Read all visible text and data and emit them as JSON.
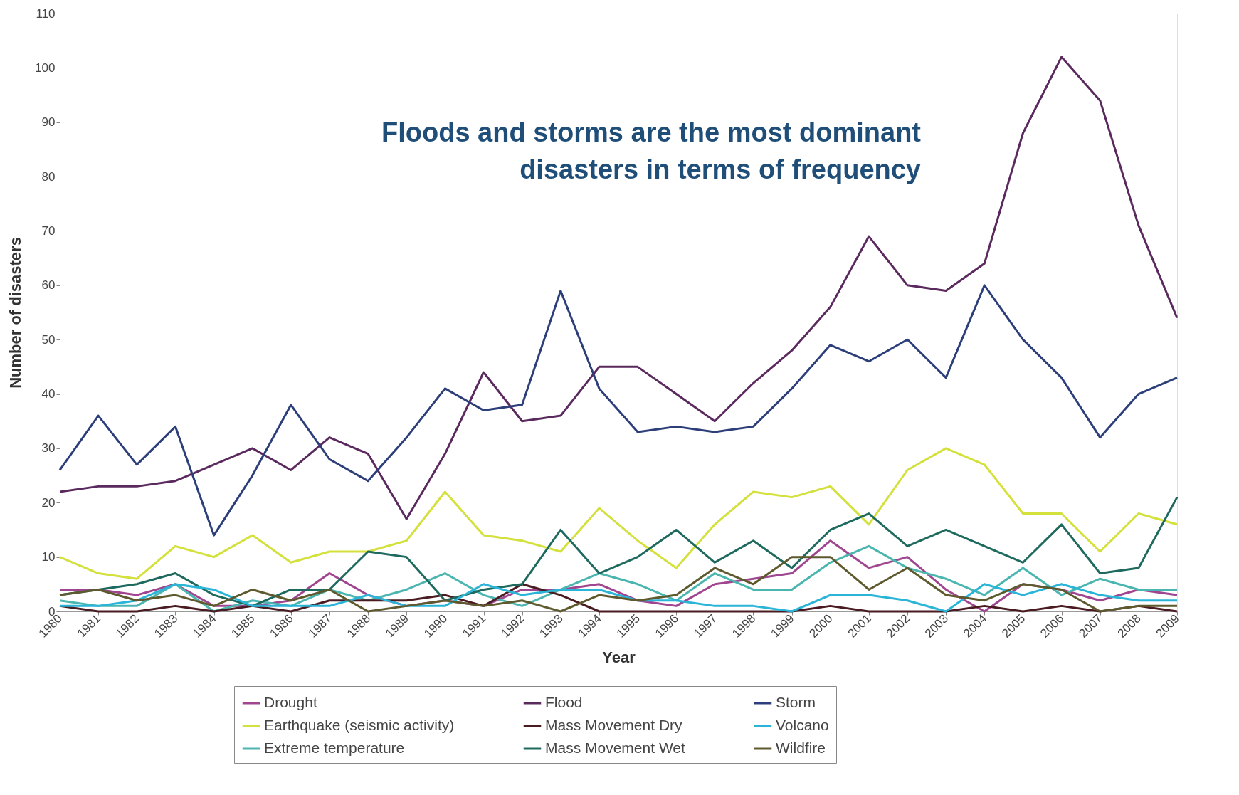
{
  "chart_data": {
    "type": "line",
    "xlabel": "Year",
    "ylabel": "Number of disasters",
    "annotations": [
      "Floods and storms are the most dominant disasters in terms of frequency"
    ],
    "x": [
      1980,
      1981,
      1982,
      1983,
      1984,
      1985,
      1986,
      1987,
      1988,
      1989,
      1990,
      1991,
      1992,
      1993,
      1994,
      1995,
      1996,
      1997,
      1998,
      1999,
      2000,
      2001,
      2002,
      2003,
      2004,
      2005,
      2006,
      2007,
      2008,
      2009
    ],
    "xlim": [
      1980,
      2009
    ],
    "xticks": [
      1980,
      1981,
      1982,
      1983,
      1984,
      1985,
      1986,
      1987,
      1988,
      1989,
      1990,
      1991,
      1992,
      1993,
      1994,
      1995,
      1996,
      1997,
      1998,
      1999,
      2000,
      2001,
      2002,
      2003,
      2004,
      2005,
      2006,
      2007,
      2008,
      2009
    ],
    "ylim": [
      0,
      110
    ],
    "yticks": [
      0,
      10,
      20,
      30,
      40,
      50,
      60,
      70,
      80,
      90,
      100,
      110
    ],
    "grid": false,
    "legend": "bottom",
    "marker": "none",
    "line_style": "solid",
    "series": [
      {
        "name": "Drought",
        "color": "#a0458f",
        "values": [
          4,
          4,
          3,
          5,
          1,
          1,
          2,
          7,
          3,
          1,
          2,
          1,
          4,
          4,
          5,
          2,
          1,
          5,
          6,
          7,
          13,
          8,
          10,
          4,
          0,
          5,
          4,
          2,
          4,
          3
        ]
      },
      {
        "name": "Earthquake (seismic activity)",
        "color": "#d4e03c",
        "values": [
          10,
          7,
          6,
          12,
          10,
          14,
          9,
          11,
          11,
          13,
          22,
          14,
          13,
          11,
          19,
          13,
          8,
          16,
          22,
          21,
          23,
          16,
          26,
          30,
          27,
          18,
          18,
          11,
          18,
          16
        ]
      },
      {
        "name": "Extreme temperature",
        "color": "#4bb5b0",
        "values": [
          2,
          1,
          1,
          5,
          0,
          2,
          1,
          4,
          2,
          4,
          7,
          3,
          1,
          4,
          7,
          5,
          2,
          7,
          4,
          4,
          9,
          12,
          8,
          6,
          3,
          8,
          3,
          6,
          4,
          4
        ]
      },
      {
        "name": "Flood",
        "color": "#5a2a5e",
        "values": [
          22,
          23,
          23,
          24,
          27,
          30,
          26,
          32,
          29,
          17,
          29,
          44,
          35,
          36,
          45,
          45,
          40,
          35,
          42,
          48,
          56,
          69,
          60,
          59,
          64,
          88,
          102,
          94,
          71,
          54
        ]
      },
      {
        "name": "Mass Movement Dry",
        "color": "#4a1c22",
        "values": [
          1,
          0,
          0,
          1,
          0,
          1,
          0,
          2,
          2,
          2,
          3,
          1,
          5,
          3,
          0,
          0,
          0,
          0,
          0,
          0,
          1,
          0,
          0,
          0,
          1,
          0,
          1,
          0,
          1,
          0
        ]
      },
      {
        "name": "Mass Movement Wet",
        "color": "#1f6a5e",
        "values": [
          3,
          4,
          5,
          7,
          3,
          1,
          4,
          4,
          11,
          10,
          2,
          4,
          5,
          15,
          7,
          10,
          15,
          9,
          13,
          8,
          15,
          18,
          12,
          15,
          12,
          9,
          16,
          7,
          8,
          21
        ]
      },
      {
        "name": "Storm",
        "color": "#2d3f7a",
        "values": [
          26,
          36,
          27,
          34,
          14,
          25,
          38,
          28,
          24,
          32,
          41,
          37,
          38,
          59,
          41,
          33,
          34,
          33,
          34,
          41,
          49,
          46,
          50,
          43,
          60,
          50,
          43,
          32,
          40,
          43
        ]
      },
      {
        "name": "Volcano",
        "color": "#2ab4d8",
        "values": [
          1,
          1,
          2,
          5,
          4,
          1,
          1,
          1,
          3,
          1,
          1,
          5,
          3,
          4,
          4,
          2,
          2,
          1,
          1,
          0,
          3,
          3,
          2,
          0,
          5,
          3,
          5,
          3,
          2,
          2
        ]
      },
      {
        "name": "Wildfire",
        "color": "#5e5a2e",
        "values": [
          3,
          4,
          2,
          3,
          1,
          4,
          2,
          4,
          0,
          1,
          2,
          1,
          2,
          0,
          3,
          2,
          3,
          8,
          5,
          10,
          10,
          4,
          8,
          3,
          2,
          5,
          4,
          0,
          1,
          1
        ]
      }
    ]
  }
}
